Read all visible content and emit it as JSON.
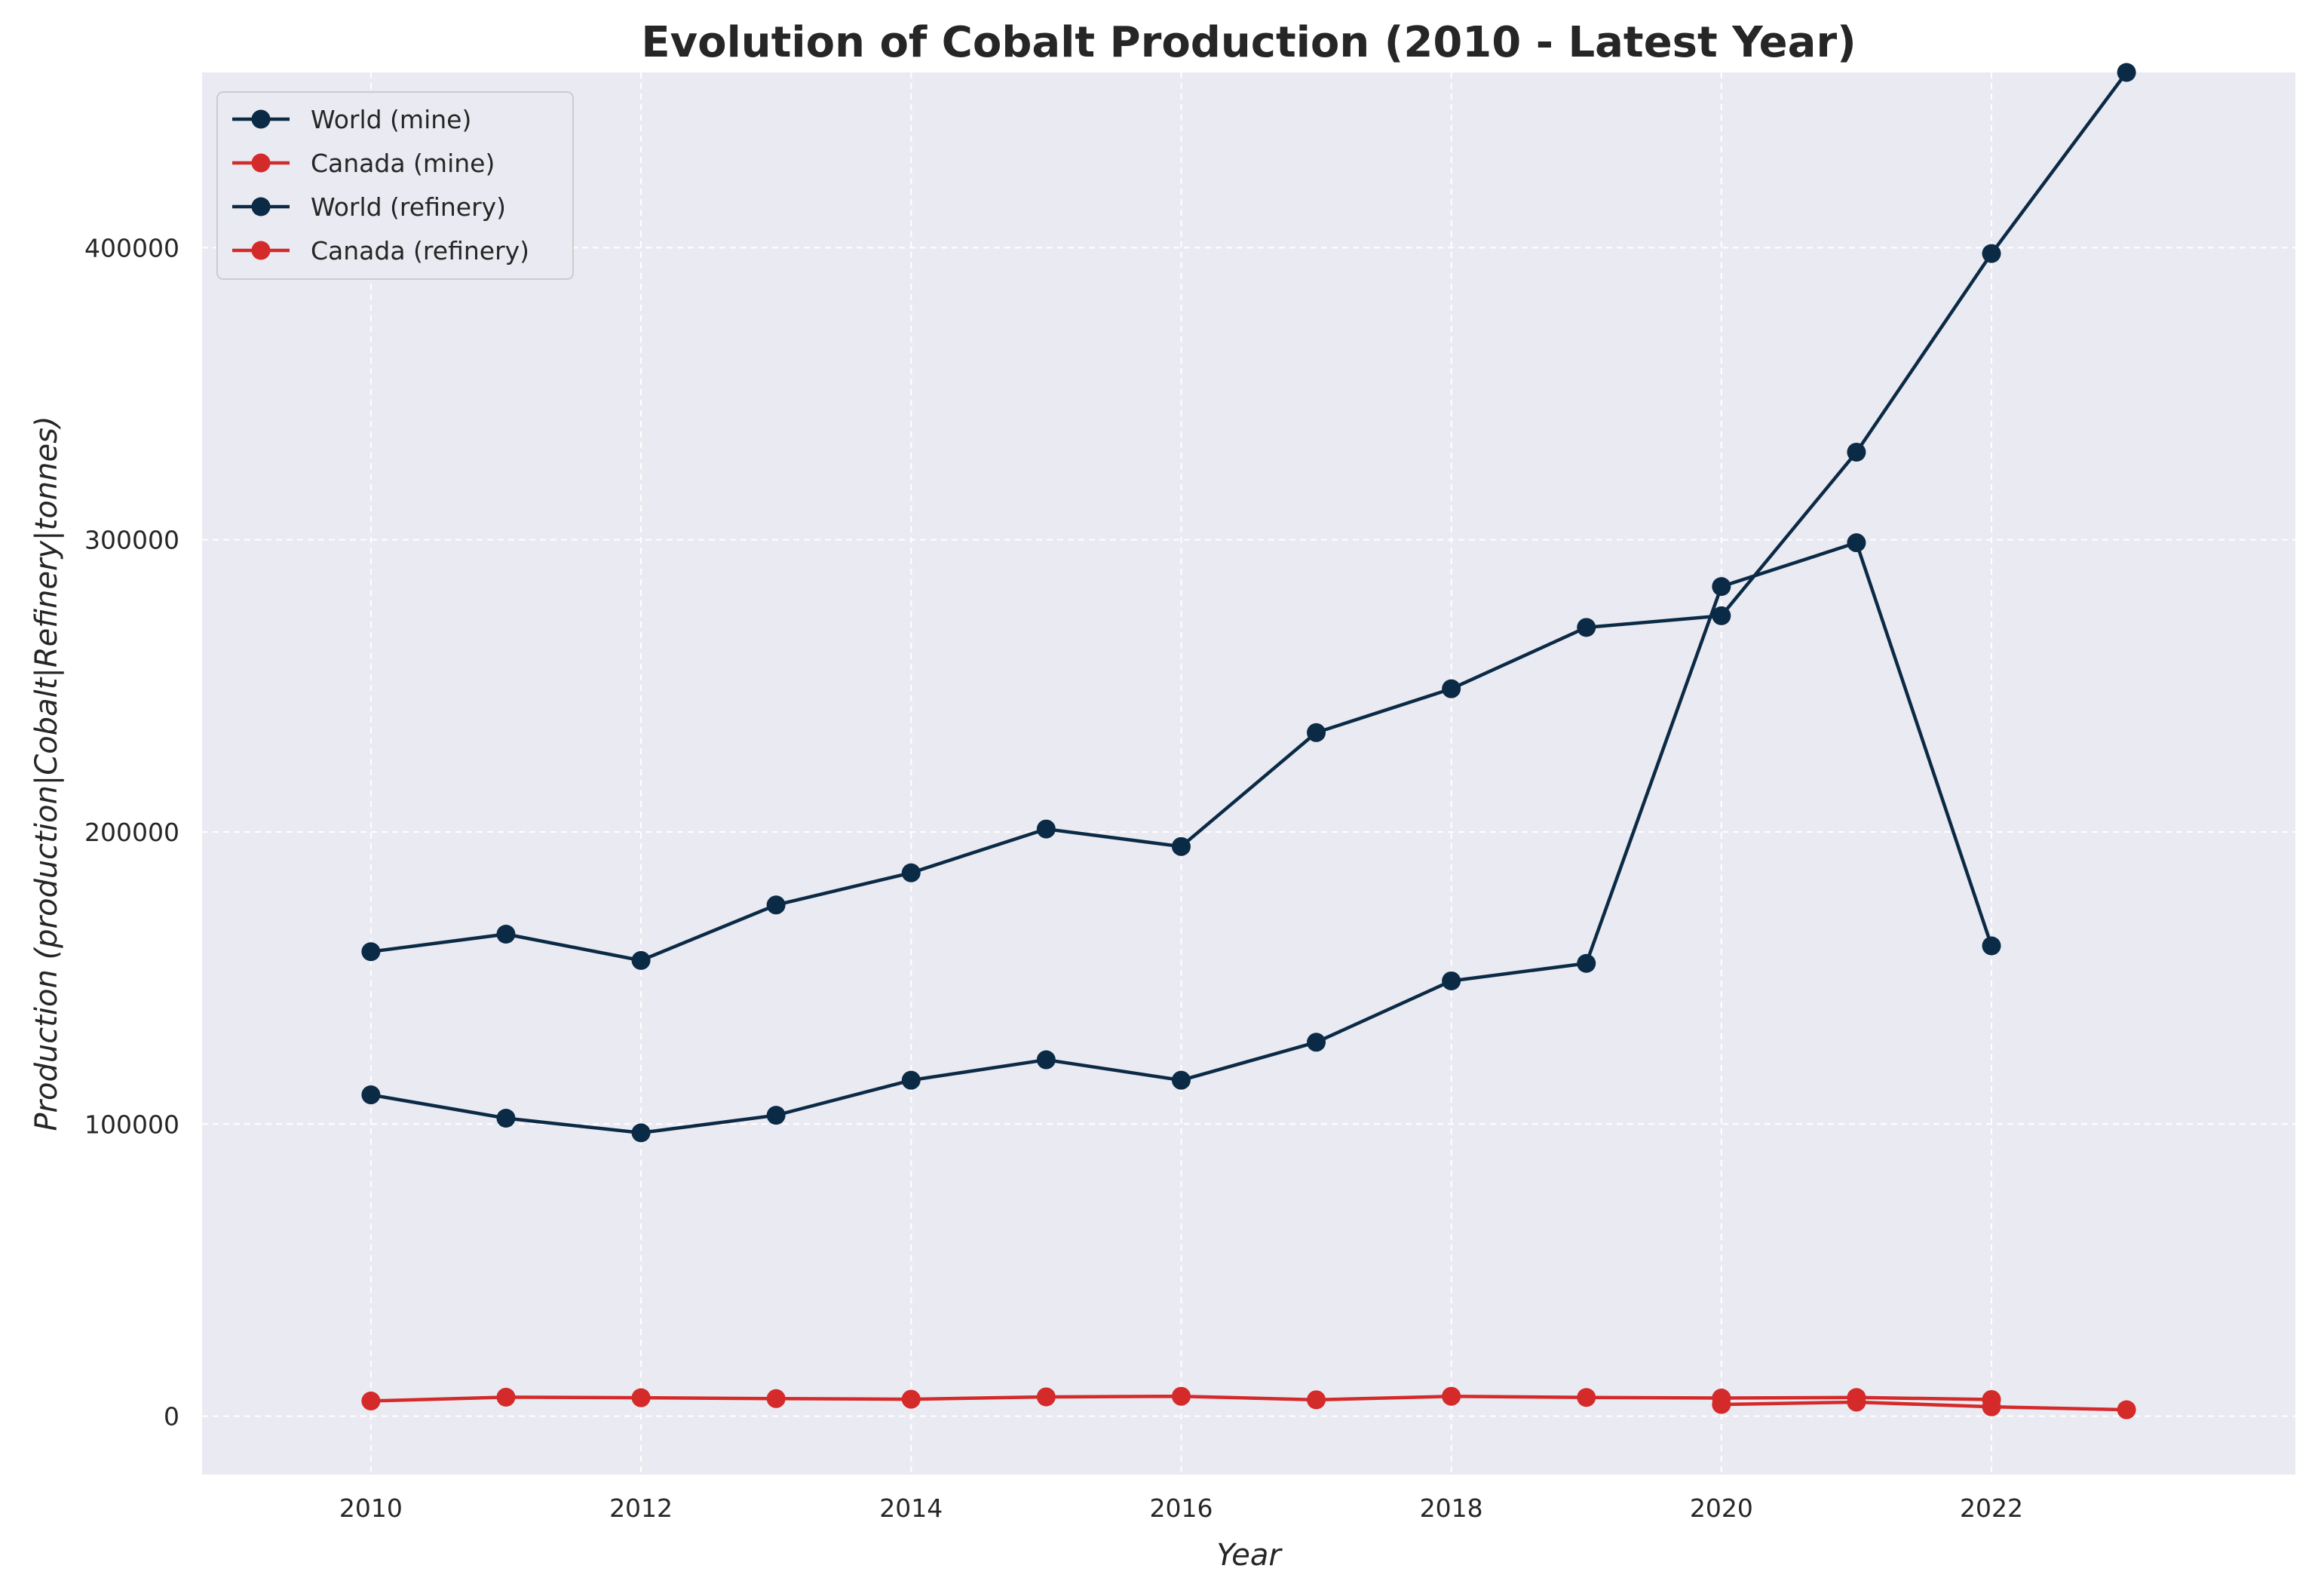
{
  "chart_data": {
    "type": "line",
    "title": "Evolution of Cobalt Production (2010 - Latest Year)",
    "xlabel": "Year",
    "ylabel": "Production (production|Cobalt|Refinery|tonnes)",
    "xlim": [
      2008.75,
      2024.25
    ],
    "ylim": [
      -20000,
      460000
    ],
    "xticks": [
      2010,
      2012,
      2014,
      2016,
      2018,
      2020,
      2022
    ],
    "yticks": [
      0,
      100000,
      200000,
      300000,
      400000
    ],
    "grid": true,
    "legend_position": "top-left",
    "colors": {
      "world": "#0b2a45",
      "canada": "#d42a2a",
      "background": "#eaeaf2"
    },
    "series": [
      {
        "name": "World (mine)",
        "color": "#0b2a45",
        "x": [
          2010,
          2011,
          2012,
          2013,
          2014,
          2015,
          2016,
          2017,
          2018,
          2019,
          2020,
          2021,
          2022
        ],
        "values": [
          110000,
          102000,
          97000,
          103000,
          115000,
          122000,
          115000,
          128000,
          149000,
          155000,
          284000,
          299000,
          161000
        ]
      },
      {
        "name": "Canada (mine)",
        "color": "#d42a2a",
        "x": [
          2010,
          2011,
          2012,
          2013,
          2014,
          2015,
          2016,
          2017,
          2018,
          2019,
          2020,
          2021,
          2022
        ],
        "values": [
          5200,
          6500,
          6300,
          6000,
          5800,
          6600,
          6800,
          5600,
          6800,
          6400,
          6200,
          6400,
          5700
        ]
      },
      {
        "name": "World (refinery)",
        "color": "#0b2a45",
        "x": [
          2010,
          2011,
          2012,
          2013,
          2014,
          2015,
          2016,
          2017,
          2018,
          2019,
          2020,
          2021,
          2022,
          2023
        ],
        "values": [
          159000,
          165000,
          156000,
          175000,
          186000,
          201000,
          195000,
          234000,
          249000,
          270000,
          274000,
          330000,
          398000,
          460000
        ]
      },
      {
        "name": "Canada (refinery)",
        "color": "#d42a2a",
        "x": [
          2020,
          2021,
          2022,
          2023
        ],
        "values": [
          4000,
          4800,
          3200,
          2200
        ]
      }
    ]
  }
}
